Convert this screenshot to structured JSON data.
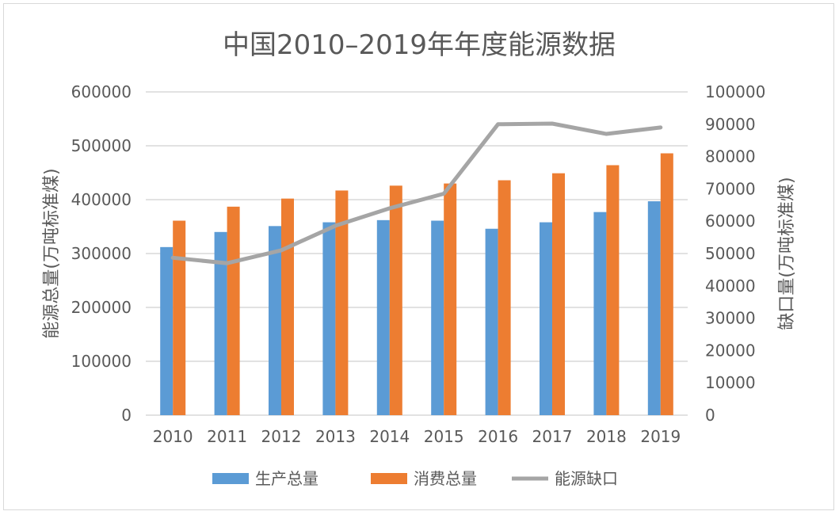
{
  "chart_data": {
    "type": "bar",
    "title": "中国2010–2019年年度能源数据",
    "categories": [
      "2010",
      "2011",
      "2012",
      "2013",
      "2014",
      "2015",
      "2016",
      "2017",
      "2018",
      "2019"
    ],
    "y_left": {
      "label": "能源总量(万吨标准煤)",
      "range": [
        0,
        600000
      ],
      "ticks": [
        "0",
        "100000",
        "200000",
        "300000",
        "400000",
        "500000",
        "600000"
      ]
    },
    "y_right": {
      "label": "缺口量(万吨标准煤)",
      "range": [
        0,
        100000
      ],
      "ticks": [
        "0",
        "10000",
        "20000",
        "30000",
        "40000",
        "50000",
        "60000",
        "70000",
        "80000",
        "90000",
        "100000"
      ]
    },
    "series": [
      {
        "name": "生产总量",
        "kind": "bar",
        "axis": "left",
        "color": "#5b9bd5",
        "values": [
          312000,
          340000,
          351000,
          358000,
          362000,
          361000,
          346000,
          358000,
          377000,
          397000
        ]
      },
      {
        "name": "消费总量",
        "kind": "bar",
        "axis": "left",
        "color": "#ed7d31",
        "values": [
          361000,
          387000,
          402000,
          417000,
          426000,
          430000,
          436000,
          449000,
          464000,
          486000
        ]
      },
      {
        "name": "能源缺口",
        "kind": "line",
        "axis": "right",
        "color": "#a5a5a5",
        "values": [
          48700,
          47000,
          51000,
          58600,
          64000,
          68500,
          90000,
          90200,
          87000,
          89000
        ]
      }
    ],
    "grid": true,
    "legend_position": "bottom"
  }
}
